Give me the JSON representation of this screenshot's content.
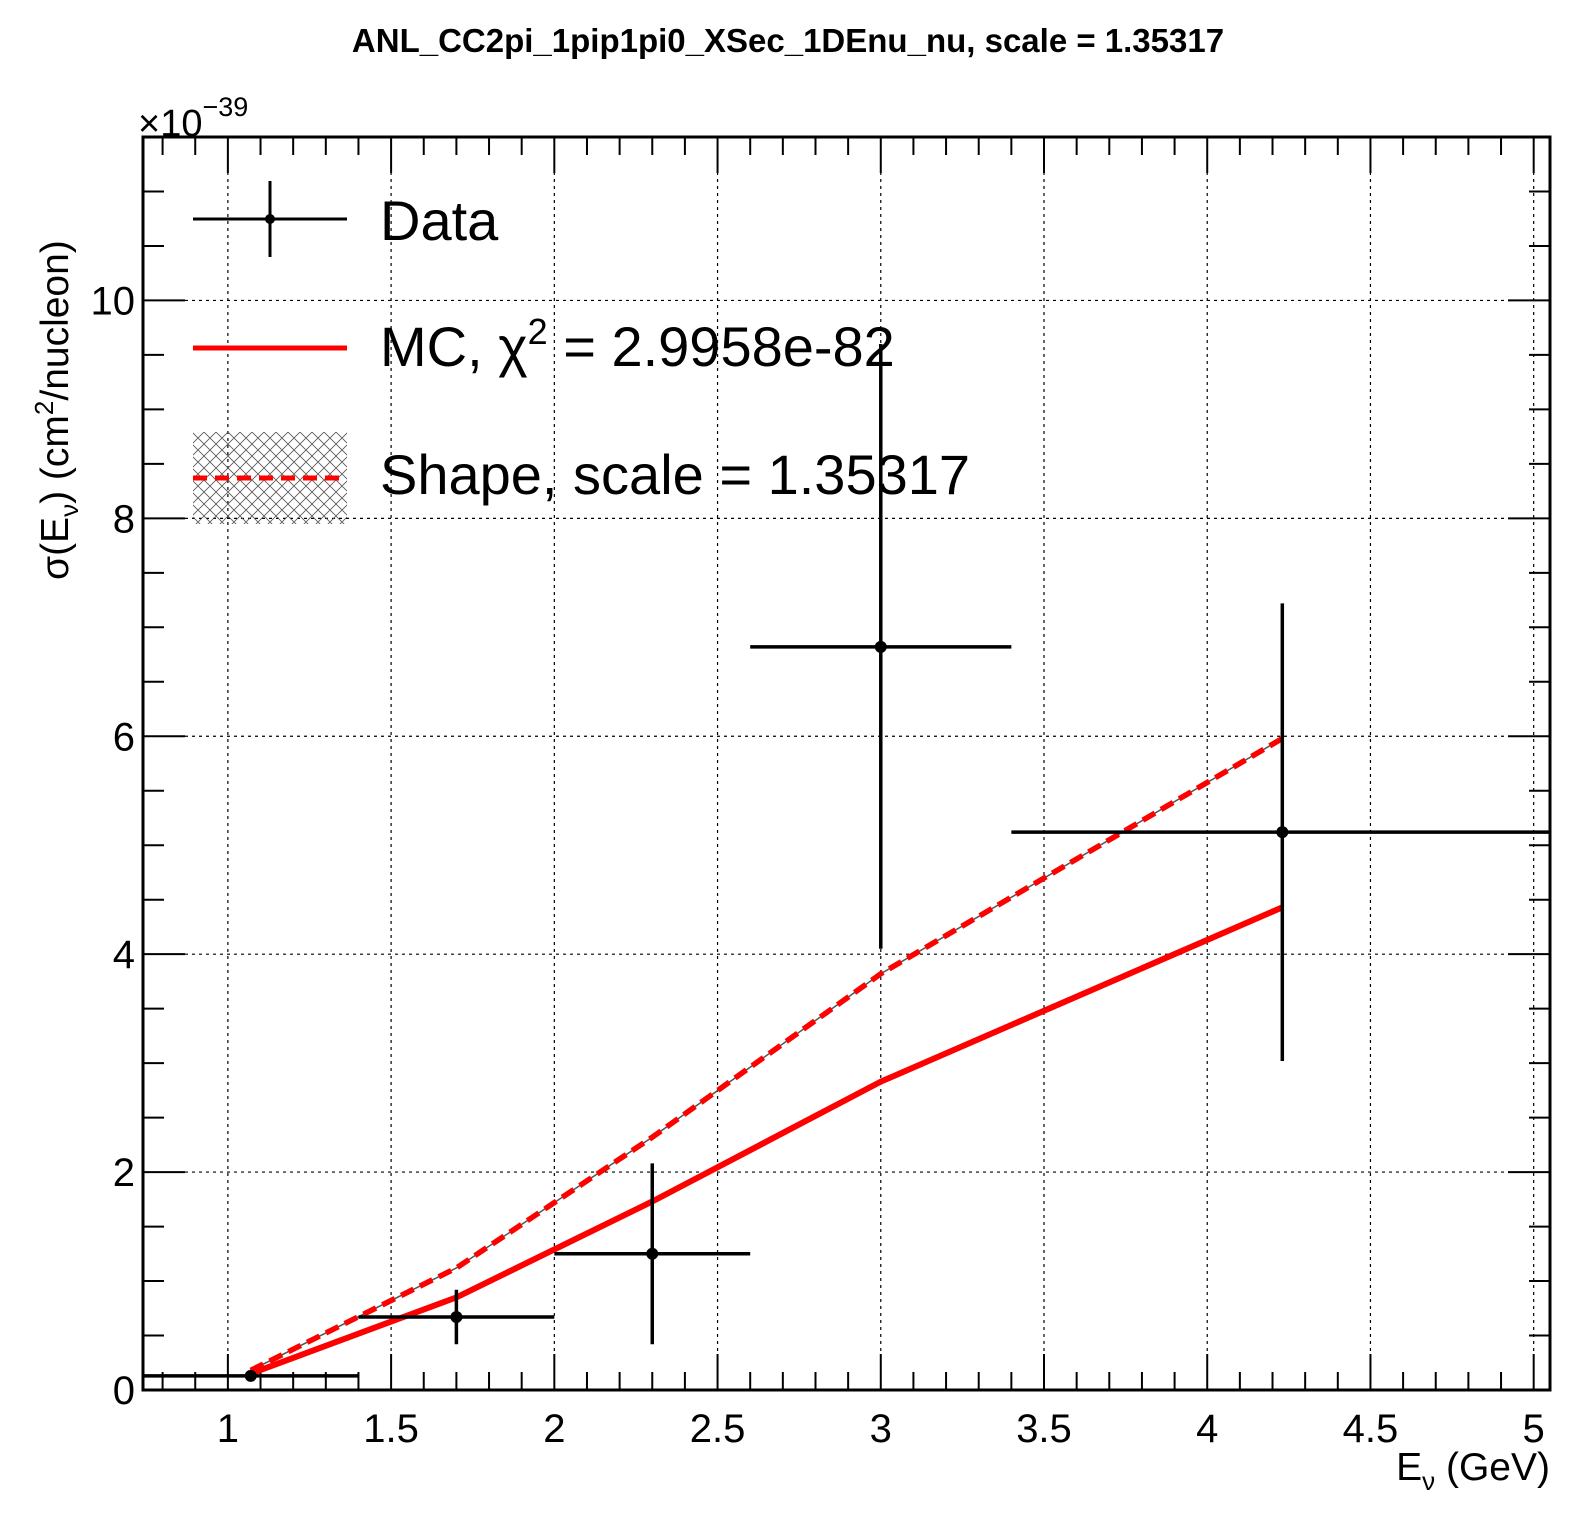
{
  "chart_data": {
    "type": "line",
    "title": "ANL_CC2pi_1pip1pi0_XSec_1DEnu_nu, scale = 1.35317",
    "xlabel": {
      "main": "E",
      "sub": "ν",
      "suffix": " (GeV)"
    },
    "ylabel": {
      "prefix": "σ(E",
      "sub": "ν",
      "mid": ") (cm",
      "sup": "2",
      "suffix": "/nucleon)"
    },
    "y_multiplier": {
      "base": "×10",
      "exponent": "−39"
    },
    "xlim": [
      0.74,
      5.05
    ],
    "ylim": [
      0,
      11.5
    ],
    "xticks": [
      1,
      1.5,
      2,
      2.5,
      3,
      3.5,
      4,
      4.5,
      5
    ],
    "xtick_labels": [
      "1",
      "1.5",
      "2",
      "2.5",
      "3",
      "3.5",
      "4",
      "4.5",
      "5"
    ],
    "yticks": [
      0,
      2,
      4,
      6,
      8,
      10
    ],
    "ytick_labels": [
      "0",
      "2",
      "4",
      "6",
      "8",
      "10"
    ],
    "grid": true,
    "legend_position": "top-left",
    "legend": [
      {
        "key": "data",
        "label": "Data"
      },
      {
        "key": "mc",
        "label_prefix": "MC, χ",
        "label_sup": "2",
        "label_suffix": " = 2.9958e-82"
      },
      {
        "key": "shape",
        "label": "Shape, scale = 1.35317"
      }
    ],
    "series": [
      {
        "name": "Data",
        "kind": "errorbar",
        "color": "#000000",
        "points": [
          {
            "x": 1.07,
            "y": 0.13,
            "xlo": 0.74,
            "xhi": 1.4,
            "ylo": 0.13,
            "yhi": 0.13
          },
          {
            "x": 1.7,
            "y": 0.67,
            "xlo": 1.4,
            "xhi": 2.0,
            "ylo": 0.42,
            "yhi": 0.92
          },
          {
            "x": 2.3,
            "y": 1.25,
            "xlo": 2.0,
            "xhi": 2.6,
            "ylo": 0.42,
            "yhi": 2.08
          },
          {
            "x": 3.0,
            "y": 6.82,
            "xlo": 2.6,
            "xhi": 3.4,
            "ylo": 4.05,
            "yhi": 9.6
          },
          {
            "x": 4.23,
            "y": 5.12,
            "xlo": 3.4,
            "xhi": 5.05,
            "ylo": 3.02,
            "yhi": 7.22
          }
        ]
      },
      {
        "name": "MC",
        "kind": "line",
        "color": "#ff0000",
        "x": [
          1.07,
          1.7,
          2.3,
          3.0,
          4.23
        ],
        "y": [
          0.15,
          0.85,
          1.73,
          2.83,
          4.43
        ]
      },
      {
        "name": "Shape",
        "kind": "dashed-line",
        "color": "#ff0000",
        "x": [
          1.07,
          1.7,
          2.3,
          3.0,
          4.23
        ],
        "y": [
          0.18,
          1.12,
          2.32,
          3.82,
          5.98
        ]
      }
    ]
  }
}
